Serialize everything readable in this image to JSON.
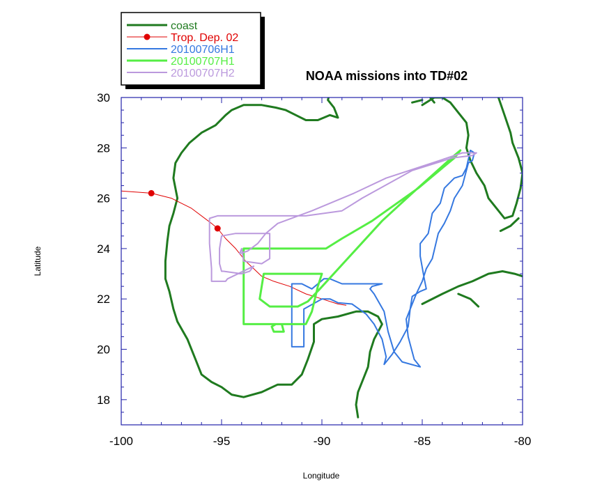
{
  "chart_data": {
    "type": "line",
    "title": "NOAA missions into TD#02",
    "xlabel": "Longitude",
    "ylabel": "Latitude",
    "xlim": [
      -100,
      -80
    ],
    "ylim": [
      17,
      30
    ],
    "xticks": [
      -100,
      -95,
      -90,
      -85,
      -80
    ],
    "yticks": [
      18,
      20,
      22,
      24,
      26,
      28,
      30
    ],
    "grid": false,
    "legend_position": "top-left",
    "series": [
      {
        "name": "coast",
        "color": "#1f7a1f",
        "width": 3,
        "marker": "none",
        "segments": [
          [
            [
              -87.0,
              30.4
            ],
            [
              -88.0,
              30.5
            ],
            [
              -88.6,
              30.4
            ],
            [
              -89.2,
              30.3
            ],
            [
              -89.6,
              30.2
            ],
            [
              -89.7,
              29.9
            ],
            [
              -89.4,
              29.6
            ],
            [
              -89.2,
              29.2
            ],
            [
              -89.6,
              29.3
            ],
            [
              -90.2,
              29.1
            ],
            [
              -90.8,
              29.1
            ],
            [
              -91.3,
              29.3
            ],
            [
              -91.8,
              29.5
            ],
            [
              -92.3,
              29.6
            ],
            [
              -93.0,
              29.7
            ],
            [
              -93.9,
              29.7
            ],
            [
              -94.5,
              29.5
            ],
            [
              -94.8,
              29.3
            ],
            [
              -95.3,
              28.9
            ],
            [
              -96.0,
              28.6
            ],
            [
              -96.6,
              28.2
            ],
            [
              -97.0,
              27.8
            ],
            [
              -97.3,
              27.4
            ],
            [
              -97.4,
              26.8
            ],
            [
              -97.2,
              26.0
            ],
            [
              -97.4,
              25.4
            ],
            [
              -97.6,
              24.9
            ],
            [
              -97.7,
              24.3
            ],
            [
              -97.8,
              23.5
            ],
            [
              -97.8,
              22.8
            ],
            [
              -97.6,
              22.3
            ],
            [
              -97.4,
              21.6
            ],
            [
              -97.2,
              21.1
            ],
            [
              -96.7,
              20.4
            ],
            [
              -96.3,
              19.6
            ],
            [
              -96.0,
              19.0
            ],
            [
              -95.5,
              18.7
            ],
            [
              -95.0,
              18.5
            ],
            [
              -94.5,
              18.2
            ],
            [
              -93.9,
              18.1
            ],
            [
              -93.0,
              18.3
            ],
            [
              -92.2,
              18.6
            ],
            [
              -91.5,
              18.6
            ],
            [
              -91.0,
              19.0
            ],
            [
              -90.7,
              19.6
            ],
            [
              -90.4,
              20.3
            ],
            [
              -90.4,
              21.0
            ],
            [
              -90.0,
              21.2
            ],
            [
              -89.2,
              21.3
            ],
            [
              -88.3,
              21.5
            ],
            [
              -87.7,
              21.5
            ],
            [
              -87.2,
              21.3
            ],
            [
              -87.0,
              21.0
            ],
            [
              -87.4,
              20.4
            ],
            [
              -87.6,
              19.9
            ],
            [
              -87.7,
              19.3
            ],
            [
              -88.0,
              18.7
            ],
            [
              -88.2,
              18.3
            ],
            [
              -88.3,
              17.8
            ],
            [
              -88.2,
              17.3
            ]
          ],
          [
            [
              -85.0,
              29.7
            ],
            [
              -84.4,
              30.0
            ],
            [
              -84.0,
              30.0
            ],
            [
              -83.6,
              29.8
            ],
            [
              -83.2,
              29.4
            ],
            [
              -82.8,
              29.0
            ],
            [
              -82.7,
              28.5
            ],
            [
              -82.8,
              28.0
            ],
            [
              -82.6,
              27.5
            ],
            [
              -82.3,
              27.0
            ],
            [
              -81.9,
              26.5
            ],
            [
              -81.7,
              26.0
            ],
            [
              -81.3,
              25.6
            ],
            [
              -80.9,
              25.2
            ],
            [
              -80.5,
              25.3
            ],
            [
              -80.3,
              25.8
            ],
            [
              -80.1,
              26.4
            ],
            [
              -80.0,
              27.0
            ],
            [
              -80.2,
              27.6
            ],
            [
              -80.5,
              28.2
            ],
            [
              -80.6,
              28.6
            ],
            [
              -80.9,
              29.3
            ],
            [
              -81.2,
              30.0
            ]
          ],
          [
            [
              -85.0,
              21.8
            ],
            [
              -84.0,
              22.2
            ],
            [
              -83.2,
              22.5
            ],
            [
              -82.5,
              22.7
            ],
            [
              -81.7,
              23.0
            ],
            [
              -81.0,
              23.1
            ],
            [
              -80.4,
              23.0
            ],
            [
              -80.0,
              22.9
            ]
          ],
          [
            [
              -83.2,
              22.2
            ],
            [
              -82.6,
              22.0
            ],
            [
              -82.2,
              21.7
            ]
          ],
          [
            [
              -85.5,
              29.8
            ],
            [
              -85.0,
              29.9
            ]
          ],
          [
            [
              -84.6,
              30.0
            ],
            [
              -84.4,
              29.8
            ]
          ],
          [
            [
              -81.1,
              24.7
            ],
            [
              -80.6,
              24.9
            ],
            [
              -80.2,
              25.2
            ]
          ]
        ]
      },
      {
        "name": "Trop. Dep. 02",
        "color": "#e00000",
        "width": 1,
        "marker": "circle",
        "markers": [
          [
            -98.5,
            26.2
          ],
          [
            -95.2,
            24.8
          ]
        ],
        "points": [
          [
            -100.2,
            26.3
          ],
          [
            -98.5,
            26.2
          ],
          [
            -97.5,
            26.0
          ],
          [
            -96.5,
            25.6
          ],
          [
            -95.5,
            25.0
          ],
          [
            -95.2,
            24.8
          ],
          [
            -94.8,
            24.4
          ],
          [
            -94.3,
            24.0
          ],
          [
            -93.8,
            23.5
          ],
          [
            -93.4,
            23.2
          ],
          [
            -93.0,
            22.9
          ],
          [
            -92.4,
            22.7
          ],
          [
            -91.6,
            22.5
          ],
          [
            -90.8,
            22.2
          ],
          [
            -90.0,
            22.0
          ],
          [
            -89.2,
            21.8
          ],
          [
            -88.8,
            21.75
          ]
        ]
      },
      {
        "name": "20100706H1",
        "color": "#3578e0",
        "width": 2,
        "marker": "none",
        "points": [
          [
            -91.5,
            20.1
          ],
          [
            -90.9,
            20.1
          ],
          [
            -90.9,
            21.6
          ],
          [
            -90.0,
            22.0
          ],
          [
            -89.6,
            22.0
          ],
          [
            -89.2,
            21.85
          ],
          [
            -88.5,
            21.8
          ],
          [
            -87.8,
            21.4
          ],
          [
            -87.4,
            21.0
          ],
          [
            -87.0,
            20.4
          ],
          [
            -86.8,
            19.7
          ],
          [
            -86.9,
            19.4
          ],
          [
            -86.5,
            19.8
          ],
          [
            -86.1,
            20.3
          ],
          [
            -85.9,
            20.6
          ],
          [
            -85.7,
            20.9
          ],
          [
            -85.6,
            21.6
          ],
          [
            -85.5,
            22.1
          ],
          [
            -85.1,
            22.3
          ],
          [
            -84.8,
            22.4
          ],
          [
            -84.9,
            22.8
          ],
          [
            -85.1,
            23.7
          ],
          [
            -85.1,
            24.2
          ],
          [
            -84.7,
            24.6
          ],
          [
            -84.5,
            25.4
          ],
          [
            -84.1,
            25.8
          ],
          [
            -83.9,
            26.4
          ],
          [
            -83.4,
            26.8
          ],
          [
            -83.0,
            26.9
          ],
          [
            -82.8,
            27.2
          ],
          [
            -82.6,
            27.9
          ],
          [
            -82.4,
            27.8
          ],
          [
            -82.5,
            27.5
          ],
          [
            -82.7,
            27.4
          ],
          [
            -83.0,
            26.5
          ],
          [
            -83.4,
            26.0
          ],
          [
            -83.6,
            25.5
          ],
          [
            -83.9,
            25.0
          ],
          [
            -84.2,
            24.6
          ],
          [
            -84.5,
            23.6
          ],
          [
            -84.8,
            23.2
          ],
          [
            -85.0,
            22.7
          ],
          [
            -85.3,
            22.2
          ],
          [
            -85.8,
            21.2
          ],
          [
            -85.7,
            20.5
          ],
          [
            -85.4,
            19.6
          ],
          [
            -85.1,
            19.3
          ],
          [
            -86.0,
            19.5
          ],
          [
            -86.4,
            19.9
          ],
          [
            -86.7,
            20.7
          ],
          [
            -86.9,
            21.5
          ],
          [
            -87.4,
            22.2
          ],
          [
            -87.6,
            22.4
          ],
          [
            -87.5,
            22.5
          ],
          [
            -87.0,
            22.6
          ],
          [
            -88.0,
            22.6
          ],
          [
            -89.0,
            22.6
          ],
          [
            -89.6,
            22.8
          ],
          [
            -89.9,
            22.8
          ],
          [
            -90.5,
            22.4
          ],
          [
            -91.0,
            22.6
          ],
          [
            -91.5,
            22.6
          ],
          [
            -91.5,
            20.1
          ]
        ]
      },
      {
        "name": "20100707H1",
        "color": "#55ee44",
        "width": 3,
        "marker": "none",
        "points": [
          [
            -83.1,
            27.9
          ],
          [
            -83.4,
            27.6
          ],
          [
            -85.2,
            26.4
          ],
          [
            -87.5,
            25.1
          ],
          [
            -89.0,
            24.4
          ],
          [
            -89.8,
            24.0
          ],
          [
            -93.9,
            24.0
          ],
          [
            -93.9,
            21.0
          ],
          [
            -92.0,
            21.0
          ],
          [
            -91.9,
            20.7
          ],
          [
            -92.4,
            20.7
          ],
          [
            -92.5,
            20.9
          ],
          [
            -92.3,
            21.0
          ],
          [
            -91.2,
            21.0
          ],
          [
            -90.8,
            21.0
          ],
          [
            -90.5,
            21.5
          ],
          [
            -90.2,
            22.5
          ],
          [
            -90.0,
            23.0
          ],
          [
            -92.9,
            23.0
          ],
          [
            -93.1,
            22.0
          ],
          [
            -92.6,
            21.7
          ],
          [
            -91.2,
            21.7
          ],
          [
            -90.7,
            21.9
          ],
          [
            -90.1,
            22.4
          ],
          [
            -87.0,
            25.1
          ],
          [
            -85.5,
            26.2
          ],
          [
            -83.4,
            27.7
          ],
          [
            -83.1,
            27.9
          ]
        ]
      },
      {
        "name": "20100707H2",
        "color": "#bb99dd",
        "width": 2,
        "marker": "none",
        "points": [
          [
            -82.3,
            27.8
          ],
          [
            -82.5,
            27.7
          ],
          [
            -83.5,
            27.6
          ],
          [
            -85.5,
            27.1
          ],
          [
            -88.0,
            26.0
          ],
          [
            -89.0,
            25.5
          ],
          [
            -90.8,
            25.3
          ],
          [
            -92.0,
            25.3
          ],
          [
            -95.2,
            25.3
          ],
          [
            -95.6,
            25.2
          ],
          [
            -95.6,
            24.2
          ],
          [
            -95.5,
            23.2
          ],
          [
            -95.5,
            22.7
          ],
          [
            -94.8,
            22.7
          ],
          [
            -94.7,
            22.8
          ],
          [
            -93.4,
            23.3
          ],
          [
            -93.6,
            23.1
          ],
          [
            -94.0,
            23.0
          ],
          [
            -94.9,
            23.1
          ],
          [
            -95.0,
            23.1
          ],
          [
            -95.1,
            23.4
          ],
          [
            -95.1,
            24.0
          ],
          [
            -95.0,
            24.5
          ],
          [
            -94.3,
            24.6
          ],
          [
            -92.6,
            24.6
          ],
          [
            -92.6,
            23.6
          ],
          [
            -93.0,
            23.4
          ],
          [
            -93.9,
            23.5
          ],
          [
            -94.0,
            24.0
          ],
          [
            -94.1,
            23.8
          ],
          [
            -93.7,
            23.9
          ],
          [
            -93.2,
            24.2
          ],
          [
            -92.8,
            24.6
          ],
          [
            -92.2,
            25.0
          ],
          [
            -90.5,
            25.5
          ],
          [
            -88.4,
            26.2
          ],
          [
            -86.8,
            26.8
          ],
          [
            -84.5,
            27.4
          ],
          [
            -83.0,
            27.8
          ],
          [
            -82.3,
            27.8
          ]
        ]
      }
    ]
  }
}
